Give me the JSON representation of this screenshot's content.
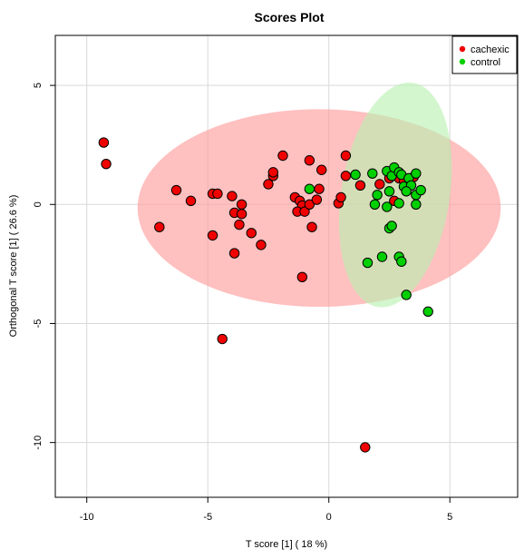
{
  "chart_data": {
    "type": "scatter",
    "title": "Scores Plot",
    "xlabel": "T score [1] ( 18 %)",
    "ylabel": "Orthogonal T score [1] ( 26.6 %)",
    "xlim": [
      -11.3,
      7.8
    ],
    "ylim": [
      -12.3,
      7.1
    ],
    "xticks": [
      -10,
      -5,
      0,
      5
    ],
    "yticks": [
      -10,
      -5,
      0,
      5
    ],
    "grid": true,
    "legend_position": "top-right",
    "series": [
      {
        "name": "cachexic",
        "color": "#f00000",
        "ellipse_color": "#ff9999",
        "ellipse": {
          "cx": -0.4,
          "cy": -0.15,
          "rx": 7.5,
          "ry": 4.15,
          "angle": 0
        },
        "points": [
          [
            -9.3,
            2.6
          ],
          [
            -9.2,
            1.7
          ],
          [
            -7.0,
            -0.95
          ],
          [
            -6.3,
            0.6
          ],
          [
            -5.7,
            0.15
          ],
          [
            -4.8,
            0.45
          ],
          [
            -4.6,
            0.45
          ],
          [
            -4.8,
            -1.3
          ],
          [
            -4.0,
            0.35
          ],
          [
            -3.9,
            -0.35
          ],
          [
            -3.6,
            0.0
          ],
          [
            -3.6,
            -0.4
          ],
          [
            -3.7,
            -0.85
          ],
          [
            -3.2,
            -1.2
          ],
          [
            -3.9,
            -2.05
          ],
          [
            -4.4,
            -5.65
          ],
          [
            -2.8,
            -1.7
          ],
          [
            -2.5,
            0.85
          ],
          [
            -2.3,
            1.2
          ],
          [
            -2.3,
            1.35
          ],
          [
            -1.9,
            2.05
          ],
          [
            -1.4,
            0.3
          ],
          [
            -1.2,
            0.15
          ],
          [
            -1.1,
            -0.05
          ],
          [
            -1.3,
            -0.3
          ],
          [
            -1.0,
            -0.3
          ],
          [
            -0.8,
            0.0
          ],
          [
            -0.7,
            -0.95
          ],
          [
            -0.5,
            0.2
          ],
          [
            -0.4,
            0.65
          ],
          [
            -0.3,
            1.45
          ],
          [
            -0.8,
            1.85
          ],
          [
            -1.1,
            -3.05
          ],
          [
            0.4,
            0.05
          ],
          [
            0.5,
            0.3
          ],
          [
            0.7,
            1.2
          ],
          [
            0.7,
            2.05
          ],
          [
            1.3,
            0.8
          ],
          [
            1.5,
            -10.2
          ],
          [
            2.1,
            0.85
          ],
          [
            2.5,
            1.1
          ],
          [
            2.7,
            0.15
          ],
          [
            2.9,
            1.1
          ],
          [
            3.1,
            1.0
          ],
          [
            3.5,
            1.15
          ]
        ]
      },
      {
        "name": "control",
        "color": "#00d000",
        "ellipse_color": "#b8f0b0",
        "ellipse": {
          "cx": 2.75,
          "cy": 0.4,
          "rx": 4.68,
          "ry": 2.28,
          "angle": -81
        },
        "points": [
          [
            -0.8,
            0.65
          ],
          [
            1.1,
            1.25
          ],
          [
            1.8,
            1.3
          ],
          [
            2.4,
            1.4
          ],
          [
            2.6,
            1.2
          ],
          [
            2.7,
            1.55
          ],
          [
            2.9,
            1.35
          ],
          [
            3.0,
            1.25
          ],
          [
            3.3,
            1.1
          ],
          [
            3.6,
            1.3
          ],
          [
            3.1,
            0.75
          ],
          [
            3.4,
            0.8
          ],
          [
            2.5,
            0.55
          ],
          [
            2.0,
            0.4
          ],
          [
            3.2,
            0.55
          ],
          [
            3.6,
            0.4
          ],
          [
            3.8,
            0.6
          ],
          [
            1.9,
            0.0
          ],
          [
            2.4,
            -0.1
          ],
          [
            2.9,
            0.05
          ],
          [
            3.6,
            0.0
          ],
          [
            2.5,
            -1.0
          ],
          [
            2.6,
            -0.9
          ],
          [
            2.2,
            -2.2
          ],
          [
            2.9,
            -2.2
          ],
          [
            3.0,
            -2.4
          ],
          [
            1.6,
            -2.45
          ],
          [
            3.2,
            -3.8
          ],
          [
            4.1,
            -4.5
          ]
        ]
      }
    ]
  }
}
